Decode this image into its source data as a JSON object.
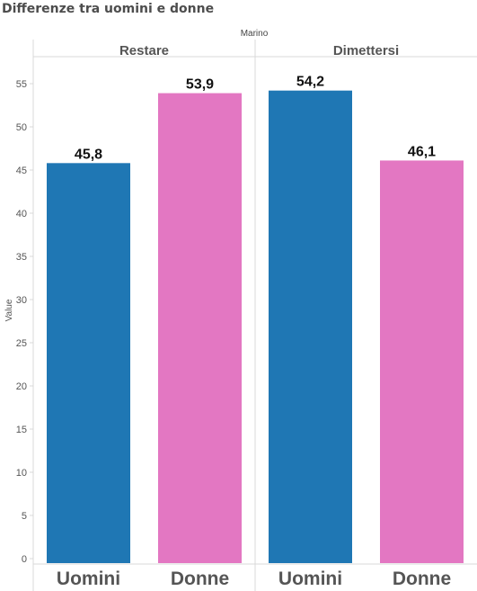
{
  "page": {
    "title": "Differenze tra uomini e donne"
  },
  "chart_data": {
    "type": "bar",
    "super_header": "Marino",
    "ylabel": "Value",
    "xlabel": "",
    "ylim": [
      0,
      57
    ],
    "yticks": [
      0,
      5,
      10,
      15,
      20,
      25,
      30,
      35,
      40,
      45,
      50,
      55
    ],
    "grid": false,
    "categories": [
      "Uomini",
      "Donne"
    ],
    "colors": {
      "Uomini": "#1f77b4",
      "Donne": "#e377c2"
    },
    "panels": [
      {
        "name": "Restare",
        "values": [
          45.8,
          53.9
        ],
        "labels": [
          "45,8",
          "53,9"
        ]
      },
      {
        "name": "Dimettersi",
        "values": [
          54.2,
          46.1
        ],
        "labels": [
          "54,2",
          "46,1"
        ]
      }
    ]
  }
}
